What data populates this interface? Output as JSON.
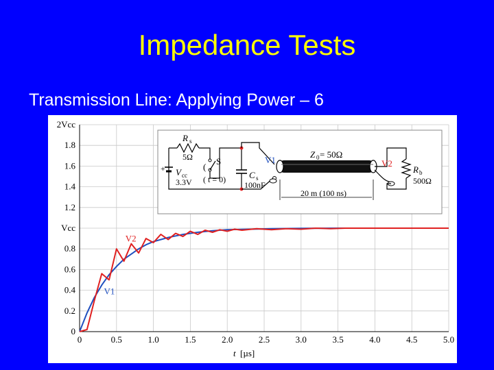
{
  "slide": {
    "title": "Impedance Tests",
    "subtitle": "Transmission Line: Applying Power – 6"
  },
  "chart_data": {
    "type": "line",
    "xlabel_var": "t",
    "xlabel_unit": "[µs]",
    "ylabel": "",
    "xlim": [
      0,
      5
    ],
    "ylim": [
      0,
      2
    ],
    "x_ticks": [
      "0",
      "0.5",
      "1.0",
      "1.5",
      "2.0",
      "2.5",
      "3.0",
      "3.5",
      "4.0",
      "4.5",
      "5.0"
    ],
    "y_ticks": [
      {
        "value": 0,
        "label": "0"
      },
      {
        "value": 0.2,
        "label": "0.2"
      },
      {
        "value": 0.4,
        "label": "0.4"
      },
      {
        "value": 0.6,
        "label": "0.6"
      },
      {
        "value": 0.8,
        "label": "0.8"
      },
      {
        "value": 1.0,
        "label": "Vcc"
      },
      {
        "value": 1.2,
        "label": "1.2"
      },
      {
        "value": 1.4,
        "label": "1.4"
      },
      {
        "value": 1.6,
        "label": "1.6"
      },
      {
        "value": 1.8,
        "label": "1.8"
      },
      {
        "value": 2.0,
        "label": "2Vcc"
      }
    ],
    "grid": true,
    "series": [
      {
        "name": "V1",
        "color": "#1f4fbf",
        "x": [
          0,
          0.1,
          0.2,
          0.3,
          0.4,
          0.5,
          0.6,
          0.7,
          0.8,
          0.9,
          1.0,
          1.2,
          1.4,
          1.6,
          1.8,
          2.0,
          2.3,
          2.6,
          3.0,
          3.5,
          4.0,
          4.5,
          5.0
        ],
        "y": [
          0,
          0.18,
          0.33,
          0.45,
          0.55,
          0.63,
          0.7,
          0.75,
          0.8,
          0.84,
          0.87,
          0.91,
          0.94,
          0.96,
          0.975,
          0.985,
          0.99,
          0.995,
          0.998,
          1.0,
          1.0,
          1.0,
          1.0
        ]
      },
      {
        "name": "V2",
        "color": "#e02020",
        "x": [
          0,
          0.1,
          0.2,
          0.3,
          0.4,
          0.5,
          0.6,
          0.7,
          0.8,
          0.9,
          1.0,
          1.1,
          1.2,
          1.3,
          1.4,
          1.5,
          1.6,
          1.7,
          1.8,
          1.9,
          2.0,
          2.1,
          2.2,
          2.4,
          2.6,
          2.8,
          3.0,
          3.2,
          3.4,
          3.6,
          4.0,
          4.5,
          5.0
        ],
        "y": [
          0,
          0.02,
          0.3,
          0.56,
          0.5,
          0.8,
          0.68,
          0.85,
          0.76,
          0.9,
          0.86,
          0.94,
          0.89,
          0.95,
          0.92,
          0.97,
          0.94,
          0.98,
          0.96,
          0.985,
          0.97,
          0.99,
          0.98,
          0.995,
          0.985,
          0.995,
          0.99,
          1.0,
          0.995,
          1.0,
          1.0,
          1.0,
          1.0
        ]
      }
    ],
    "annotations": [
      {
        "text": "V2",
        "x": 0.62,
        "y": 0.87,
        "color": "#e02020"
      },
      {
        "text": "V1",
        "x": 0.33,
        "y": 0.36,
        "color": "#1f4fbf"
      }
    ]
  },
  "circuit": {
    "rs_label": "R",
    "rs_sub": "s",
    "rs_value": "5Ω",
    "switch_label": "S",
    "switch_paren_open": "(",
    "switch_time": "( t = 0)",
    "vcc_label": "V",
    "vcc_sub": "cc",
    "vcc_value": "3.3V",
    "plus": "+",
    "cs_label": "C",
    "cs_sub": "s",
    "cs_value": "100nF",
    "v1_label": "V1",
    "v2_label": "V2",
    "z0_label": "Z",
    "z0_sub": "0",
    "z0_value": " = 50Ω",
    "length_label": "20 m (100 ns)",
    "rb_label": "R",
    "rb_sub": "b",
    "rb_value": "500Ω"
  }
}
